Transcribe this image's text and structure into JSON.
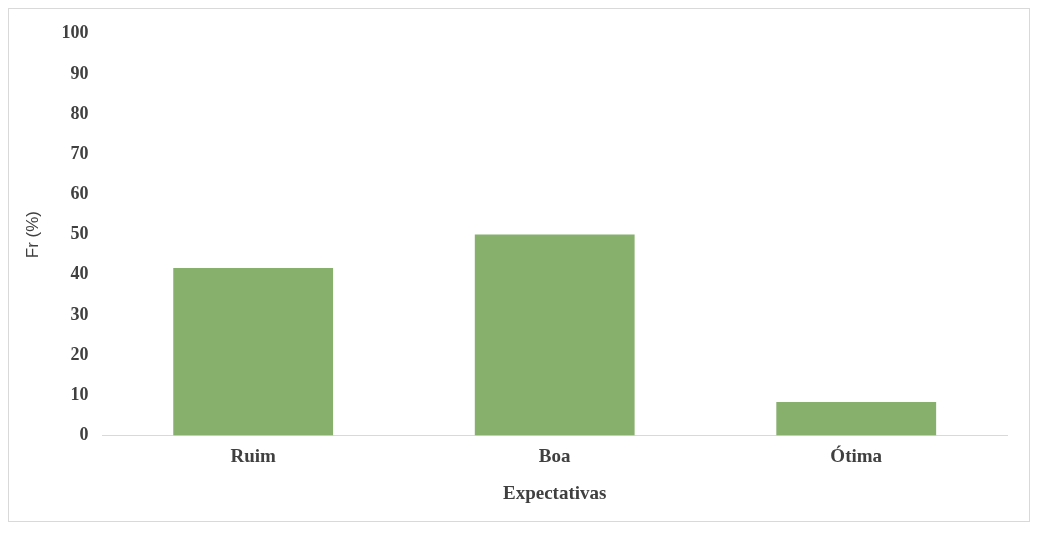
{
  "chart_data": {
    "type": "bar",
    "xlabel": "Expectativas",
    "ylabel": "Fr (%)",
    "categories": [
      "Ruim",
      "Boa",
      "Ótima"
    ],
    "values": [
      41.7,
      50,
      8.3
    ],
    "color": "#86b06c",
    "ylim": [
      0,
      100
    ],
    "yticks": [
      0,
      10,
      20,
      30,
      40,
      50,
      60,
      70,
      80,
      90,
      100
    ],
    "grid": false,
    "legend": false
  }
}
